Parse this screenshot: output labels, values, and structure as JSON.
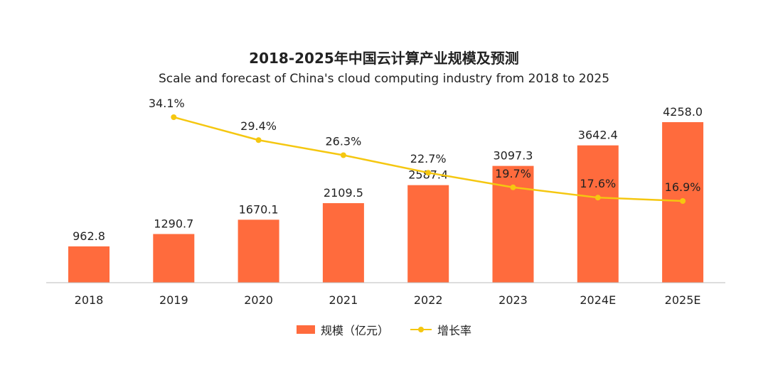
{
  "chart_data": {
    "type": "bar",
    "title": "2018-2025年中国云计算产业规模及预测",
    "subtitle": "Scale and forecast of China's cloud computing industry from 2018 to 2025",
    "categories": [
      "2018",
      "2019",
      "2020",
      "2021",
      "2022",
      "2023",
      "2024E",
      "2025E"
    ],
    "series": [
      {
        "name": "规模（亿元）",
        "type": "bar",
        "color": "#FF6B3D",
        "values": [
          962.8,
          1290.7,
          1670.1,
          2109.5,
          2587.4,
          3097.3,
          3642.4,
          4258.0
        ],
        "labels": [
          "962.8",
          "1290.7",
          "1670.1",
          "2109.5",
          "2587.4",
          "3097.3",
          "3642.4",
          "4258.0"
        ]
      },
      {
        "name": "增长率",
        "type": "line",
        "color": "#F5C710",
        "unit": "%",
        "values": [
          null,
          34.1,
          29.4,
          26.3,
          22.7,
          19.7,
          17.6,
          16.9
        ],
        "labels": [
          "",
          "34.1%",
          "29.4%",
          "26.3%",
          "22.7%",
          "19.7%",
          "17.6%",
          "16.9%"
        ]
      }
    ],
    "xlabel": "",
    "ylabel": "",
    "grid": false,
    "legend": "bottom"
  }
}
